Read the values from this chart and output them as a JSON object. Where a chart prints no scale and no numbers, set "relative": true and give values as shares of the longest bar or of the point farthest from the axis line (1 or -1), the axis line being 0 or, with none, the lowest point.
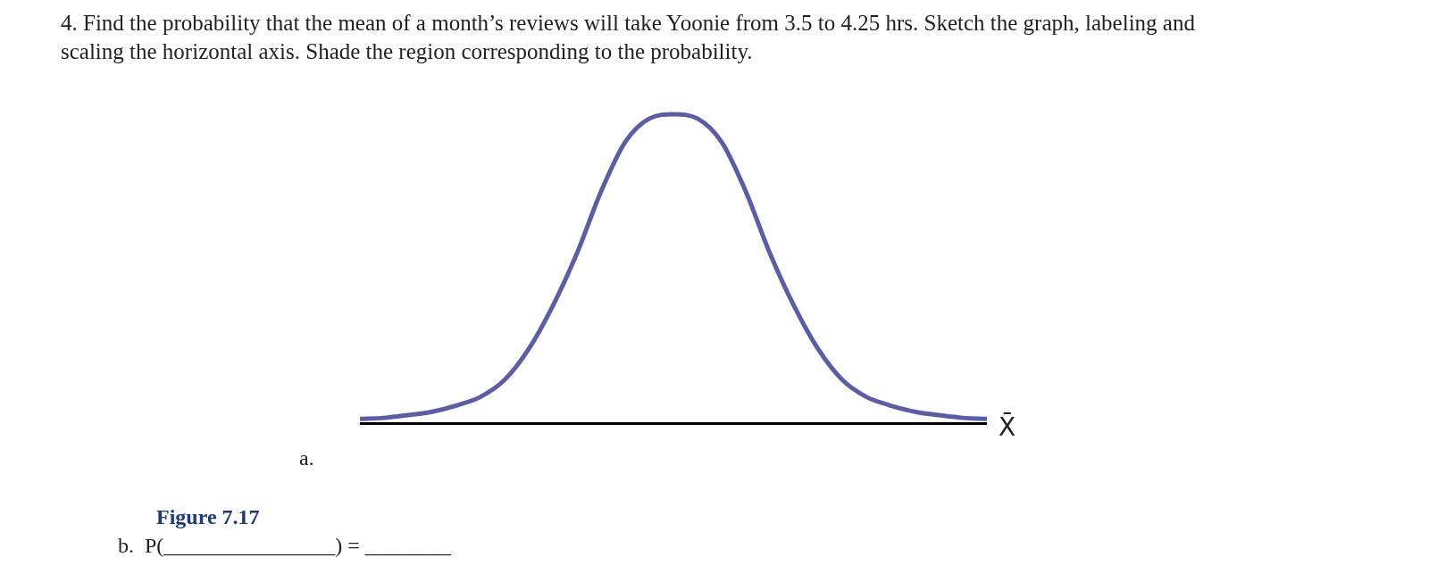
{
  "chart_data": {
    "type": "line",
    "title": "4. Find the probability that the mean of a month’s reviews will take Yoonie from 3.5 to 4.25 hrs. Sketch the graph, labeling and scaling the horizontal axis. Shade the region corresponding to the probability.",
    "xlabel": "X̄",
    "relative": true,
    "tick_labels": false,
    "marker": "none",
    "line_style": "solid",
    "categories": [
      null,
      null,
      null,
      null,
      null,
      null,
      null,
      null,
      null,
      null,
      null,
      null,
      null,
      null,
      null,
      null,
      null,
      null,
      null,
      null,
      null,
      null,
      null,
      null,
      null,
      null,
      null
    ],
    "series": [
      {
        "color": "#5b5ea6",
        "values": [
          0.014,
          0.017,
          0.026,
          0.037,
          0.057,
          0.085,
          0.14,
          0.24,
          0.38,
          0.55,
          0.75,
          0.91,
          0.986,
          1,
          0.986,
          0.91,
          0.75,
          0.55,
          0.38,
          0.24,
          0.14,
          0.085,
          0.057,
          0.037,
          0.026,
          0.017,
          0.014
        ]
      }
    ],
    "annotations": [
      "a.",
      "Figure 7.17",
      "b.  P(________________) = ________"
    ]
  }
}
